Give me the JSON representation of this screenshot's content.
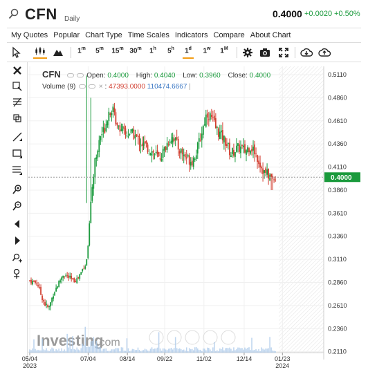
{
  "header": {
    "symbol": "CFN",
    "period": "Daily",
    "last_price": "0.4000",
    "change": "+0.0020",
    "change_pct": "+0.50%"
  },
  "menu": [
    "My Quotes",
    "Popular",
    "Chart Type",
    "Time Scales",
    "Indicators",
    "Compare",
    "About Chart"
  ],
  "toolbar": {
    "timeframes": [
      {
        "base": "1",
        "unit": "m"
      },
      {
        "base": "5",
        "unit": "m"
      },
      {
        "base": "15",
        "unit": "m"
      },
      {
        "base": "30",
        "unit": "m"
      },
      {
        "base": "1",
        "unit": "h"
      },
      {
        "base": "5",
        "unit": "h"
      },
      {
        "base": "1",
        "unit": "d"
      },
      {
        "base": "1",
        "unit": "w"
      },
      {
        "base": "1",
        "unit": "M"
      }
    ],
    "active_timeframe": "1d",
    "icons": [
      "cursor-icon",
      "candlestick-icon",
      "mountain-icon",
      "gear-icon",
      "camera-icon",
      "fullscreen-icon",
      "cloud-download-icon",
      "cloud-upload-icon"
    ]
  },
  "left_tools": [
    "close-icon",
    "crosshair-icon",
    "fibonacci-icon",
    "layers-icon",
    "trendline-icon",
    "rectangle-icon",
    "horizontal-lines-icon",
    "zoom-in-icon",
    "zoom-out-icon",
    "arrow-left-icon",
    "arrow-right-icon",
    "zoom-reset-icon",
    "magnet-icon"
  ],
  "legend": {
    "symbol": "CFN",
    "open_label": "Open:",
    "open": "0.4000",
    "high_label": "High:",
    "high": "0.4040",
    "low_label": "Low:",
    "low": "0.3960",
    "close_label": "Close:",
    "close": "0.4000",
    "volume_label": "Volume (9)",
    "volume_value": "47393.0000",
    "volume_ma": "110474.6667"
  },
  "chart_data": {
    "type": "candlestick",
    "title": "",
    "xlabel": "",
    "ylabel": "",
    "ylim": [
      0.21,
      0.52
    ],
    "y_ticks": [
      0.511,
      0.486,
      0.461,
      0.436,
      0.411,
      0.386,
      0.361,
      0.336,
      0.311,
      0.286,
      0.261,
      0.236,
      0.211
    ],
    "x_ticks": [
      {
        "label": "05/04",
        "sub": "2023",
        "day": 0
      },
      {
        "label": "07/04",
        "sub": "",
        "day": 61
      },
      {
        "label": "08/14",
        "sub": "",
        "day": 102
      },
      {
        "label": "09/22",
        "sub": "",
        "day": 141
      },
      {
        "label": "11/02",
        "sub": "",
        "day": 182
      },
      {
        "label": "12/14",
        "sub": "",
        "day": 224
      },
      {
        "label": "01/23",
        "sub": "2024",
        "day": 264
      }
    ],
    "current_price": 0.4,
    "current_price_label": "0.4000",
    "up_color": "#1a9a3c",
    "down_color": "#d23f31",
    "volume_color": "#a9c8ea",
    "anchors": [
      [
        0,
        0.288
      ],
      [
        8,
        0.285
      ],
      [
        12,
        0.272
      ],
      [
        16,
        0.262
      ],
      [
        20,
        0.258
      ],
      [
        25,
        0.275
      ],
      [
        30,
        0.285
      ],
      [
        35,
        0.295
      ],
      [
        40,
        0.292
      ],
      [
        45,
        0.288
      ],
      [
        50,
        0.29
      ],
      [
        55,
        0.3
      ],
      [
        58,
        0.305
      ],
      [
        60,
        0.31
      ],
      [
        63,
        0.36
      ],
      [
        66,
        0.4
      ],
      [
        70,
        0.43
      ],
      [
        74,
        0.445
      ],
      [
        78,
        0.452
      ],
      [
        82,
        0.47
      ],
      [
        86,
        0.475
      ],
      [
        90,
        0.462
      ],
      [
        96,
        0.452
      ],
      [
        100,
        0.446
      ],
      [
        105,
        0.448
      ],
      [
        110,
        0.445
      ],
      [
        115,
        0.438
      ],
      [
        120,
        0.434
      ],
      [
        125,
        0.43
      ],
      [
        130,
        0.426
      ],
      [
        135,
        0.42
      ],
      [
        140,
        0.428
      ],
      [
        145,
        0.44
      ],
      [
        150,
        0.445
      ],
      [
        155,
        0.432
      ],
      [
        160,
        0.425
      ],
      [
        165,
        0.42
      ],
      [
        170,
        0.418
      ],
      [
        175,
        0.43
      ],
      [
        180,
        0.45
      ],
      [
        185,
        0.47
      ],
      [
        190,
        0.464
      ],
      [
        195,
        0.452
      ],
      [
        200,
        0.445
      ],
      [
        205,
        0.438
      ],
      [
        210,
        0.425
      ],
      [
        215,
        0.43
      ],
      [
        220,
        0.432
      ],
      [
        225,
        0.428
      ],
      [
        230,
        0.434
      ],
      [
        235,
        0.428
      ],
      [
        240,
        0.416
      ],
      [
        245,
        0.405
      ],
      [
        250,
        0.402
      ],
      [
        254,
        0.398
      ],
      [
        258,
        0.4
      ]
    ],
    "spikes": [
      {
        "day": 60,
        "high": 0.51,
        "low": 0.372
      },
      {
        "day": 64,
        "high": 0.486,
        "low": 0.35
      },
      {
        "day": 253,
        "high": 0.404,
        "low": 0.386
      }
    ]
  },
  "watermark": {
    "brand": "Investing",
    "suffix": ".com"
  }
}
